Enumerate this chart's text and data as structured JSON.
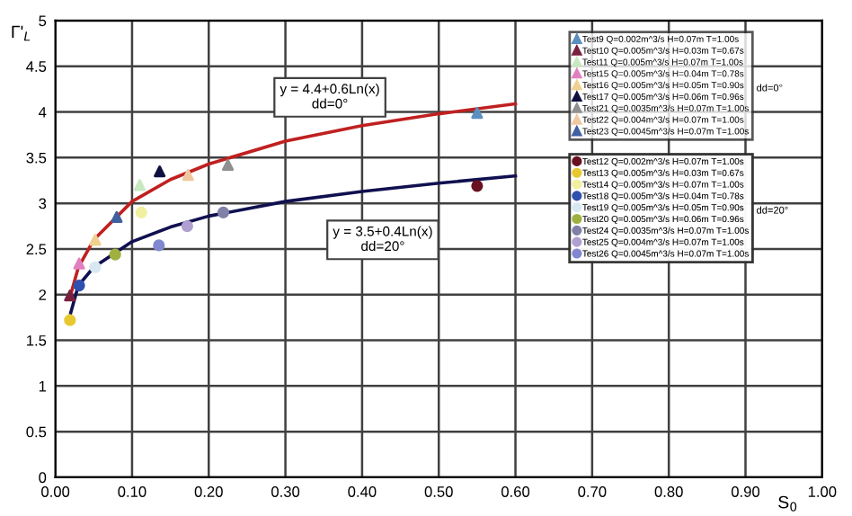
{
  "chart_data": {
    "type": "scatter",
    "xlabel": "S$_{0}$",
    "ylabel": "Γ'$_{L}$",
    "xlim": [
      0,
      1
    ],
    "xticks": [
      {
        "value": 0,
        "label": "0.00"
      },
      {
        "value": 0.1,
        "label": "0.10"
      },
      {
        "value": 0.2,
        "label": "0.20"
      },
      {
        "value": 0.3,
        "label": "0.30"
      },
      {
        "value": 0.4,
        "label": "0.40"
      },
      {
        "value": 0.5,
        "label": "0.50"
      },
      {
        "value": 0.6,
        "label": "0.60"
      },
      {
        "value": 0.7,
        "label": "0.70"
      },
      {
        "value": 0.8,
        "label": "0.80"
      },
      {
        "value": 0.9,
        "label": "0.90"
      },
      {
        "value": 1,
        "label": "1.00"
      }
    ],
    "ylim": [
      0,
      5
    ],
    "yticks": [
      0,
      0.5,
      1,
      1.5,
      2,
      2.5,
      3,
      3.5,
      4,
      4.5,
      5
    ],
    "grid": true,
    "legend": "top right",
    "series": [
      {
        "name": "Test9 Q=0.002m^3/s H=0.07m T=1.00s",
        "color": "#5b8fc0",
        "marker": "triangle",
        "x": [
          0.55
        ],
        "values": [
          3.99
        ]
      },
      {
        "name": "Test10 Q=0.005m^3/s H=0.03m T=0.67s",
        "color": "#7a2040",
        "marker": "triangle",
        "x": [
          0.019
        ],
        "values": [
          1.99
        ]
      },
      {
        "name": "Test11 Q=0.005m^3/s H=0.07m T=1.00s",
        "color": "#c8e8c0",
        "marker": "triangle",
        "x": [
          0.11
        ],
        "values": [
          3.2
        ]
      },
      {
        "name": "Test15 Q=0.005m^3/s H=0.04m T=0.78s",
        "color": "#e080c0",
        "marker": "triangle",
        "x": [
          0.031
        ],
        "values": [
          2.34
        ]
      },
      {
        "name": "Test16 Q=0.005m^3/s H=0.05m T=0.90s",
        "color": "#f0d090",
        "marker": "triangle",
        "x": [
          0.052
        ],
        "values": [
          2.6
        ]
      },
      {
        "name": "Test17 Q=0.005m^3/s H=0.06m T=0.96s",
        "color": "#101040",
        "marker": "triangle",
        "x": [
          0.136
        ],
        "values": [
          3.35
        ]
      },
      {
        "name": "Test21 Q=0.0035m^3/s H=0.07m T=1.00s",
        "color": "#909090",
        "marker": "triangle",
        "x": [
          0.225
        ],
        "values": [
          3.42
        ]
      },
      {
        "name": "Test22 Q=0.004m^3/s H=0.07m T=1.00s",
        "color": "#f0c8a0",
        "marker": "triangle",
        "x": [
          0.173
        ],
        "values": [
          3.31
        ]
      },
      {
        "name": "Test23 Q=0.0045m^3/s H=0.07m T=1.00s",
        "color": "#4060a0",
        "marker": "triangle",
        "x": [
          0.08
        ],
        "values": [
          2.85
        ]
      },
      {
        "name": "Test12 Q=0.002m^3/s H=0.07m T=1.00s",
        "color": "#6a1020",
        "marker": "circle",
        "x": [
          0.55
        ],
        "values": [
          3.19
        ]
      },
      {
        "name": "Test13 Q=0.005m^3/s H=0.03m T=0.67s",
        "color": "#e8c830",
        "marker": "circle",
        "x": [
          0.019
        ],
        "values": [
          1.72
        ]
      },
      {
        "name": "Test14 Q=0.005m^3/s H=0.07m T=1.00s",
        "color": "#f0f0a0",
        "marker": "circle",
        "x": [
          0.112
        ],
        "values": [
          2.9
        ]
      },
      {
        "name": "Test18 Q=0.005m^3/s H=0.04m T=0.78s",
        "color": "#3050b0",
        "marker": "circle",
        "x": [
          0.031
        ],
        "values": [
          2.1
        ]
      },
      {
        "name": "Test19 Q=0.005m^3/s H=0.05m T=0.90s",
        "color": "#d8e8f0",
        "marker": "circle",
        "x": [
          0.052
        ],
        "values": [
          2.3
        ]
      },
      {
        "name": "Test20 Q=0.005m^3/s H=0.06m T=0.96s",
        "color": "#a0b040",
        "marker": "circle",
        "x": [
          0.078
        ],
        "values": [
          2.44
        ]
      },
      {
        "name": "Test24 Q=0.0035m^3/s H=0.07m T=1.00s",
        "color": "#8080a8",
        "marker": "circle",
        "x": [
          0.219
        ],
        "values": [
          2.9
        ]
      },
      {
        "name": "Test25 Q=0.004m^3/s H=0.07m T=1.00s",
        "color": "#b0a0d0",
        "marker": "circle",
        "x": [
          0.172
        ],
        "values": [
          2.75
        ]
      },
      {
        "name": "Test26 Q=0.0045m^3/s H=0.07m T=1.00s",
        "color": "#8088d0",
        "marker": "circle",
        "x": [
          0.135
        ],
        "values": [
          2.54
        ]
      },
      {
        "type": "line",
        "color": "#c02020",
        "marker": "none",
        "x": [
          0.02,
          0.03,
          0.05,
          0.1,
          0.15,
          0.2,
          0.3,
          0.4,
          0.5,
          0.6
        ],
        "values": [
          2.0,
          2.3,
          2.6,
          3.02,
          3.26,
          3.43,
          3.68,
          3.85,
          3.98,
          4.09
        ]
      },
      {
        "type": "line",
        "color": "#101050",
        "marker": "none",
        "x": [
          0.02,
          0.03,
          0.05,
          0.1,
          0.15,
          0.2,
          0.3,
          0.4,
          0.5,
          0.6
        ],
        "values": [
          1.8,
          2.1,
          2.3,
          2.58,
          2.74,
          2.86,
          3.02,
          3.13,
          3.22,
          3.3
        ]
      }
    ],
    "annotations": [
      "y = 4.4+0.6Ln(x)\ndd=0°",
      "y = 3.5+0.4Ln(x)\ndd=20°",
      "dd=0°",
      "dd=20°"
    ]
  }
}
